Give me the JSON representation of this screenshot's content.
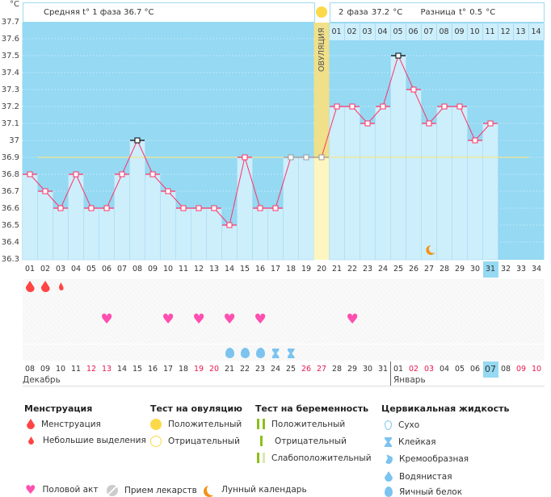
{
  "units": "°C",
  "header": {
    "phase1": "Средняя t° 1 фаза  36.7 °C",
    "phase2": "2 фаза  37.2 °C",
    "difference": "Разница t°  0.5 °C",
    "ovulation_label": "ОВУЛЯЦИЯ"
  },
  "phase2_days": [
    "01",
    "02",
    "03",
    "04",
    "05",
    "06",
    "07",
    "08",
    "09",
    "10",
    "11",
    "12",
    "13",
    "14"
  ],
  "chart_data": {
    "type": "bar",
    "ylim": [
      36.3,
      37.7
    ],
    "yticks": [
      "37.7",
      "37.6",
      "37.5",
      "37.4",
      "37.3",
      "37.2",
      "37.1",
      "37",
      "36.9",
      "36.8",
      "36.7",
      "36.6",
      "36.5",
      "36.4",
      "36.3"
    ],
    "categories": [
      "01",
      "02",
      "03",
      "04",
      "05",
      "06",
      "07",
      "08",
      "09",
      "10",
      "11",
      "12",
      "13",
      "14",
      "15",
      "16",
      "17",
      "18",
      "19",
      "20",
      "21",
      "22",
      "23",
      "24",
      "25",
      "26",
      "27",
      "28",
      "29",
      "30",
      "31",
      "32",
      "33",
      "34"
    ],
    "values": [
      36.8,
      36.7,
      36.6,
      36.8,
      36.6,
      36.6,
      36.8,
      37.0,
      36.8,
      36.7,
      36.6,
      36.6,
      36.6,
      36.5,
      36.9,
      36.6,
      36.6,
      36.9,
      36.9,
      36.9,
      37.2,
      37.2,
      37.1,
      37.2,
      37.5,
      37.3,
      37.1,
      37.2,
      37.2,
      37.0,
      37.1,
      null,
      null,
      null
    ],
    "coverline": 36.9,
    "ovulation_day": 20,
    "current_day": 31,
    "colors": {
      "line": "#ff3366",
      "bar": "#cdeefb",
      "background": "#95d9f3",
      "ovulation": "#fdf6c0",
      "coverline": "#f5e68a"
    }
  },
  "icons": {
    "menstruation": {
      "01": "menstruation",
      "02": "menstruation",
      "03": "spotting"
    },
    "intercourse": [
      "06",
      "10",
      "12",
      "14",
      "16",
      "22"
    ],
    "cervical": {
      "14": "egg-white",
      "15": "egg-white",
      "16": "egg-white",
      "17": "sticky",
      "18": "sticky"
    },
    "moon_day": "27"
  },
  "dates": [
    "08",
    "09",
    "10",
    "11",
    "12",
    "13",
    "14",
    "15",
    "16",
    "17",
    "18",
    "19",
    "20",
    "21",
    "22",
    "23",
    "24",
    "25",
    "26",
    "27",
    "28",
    "29",
    "30",
    "31",
    "01",
    "02",
    "03",
    "04",
    "05",
    "06",
    "07",
    "08",
    "09",
    "10"
  ],
  "weekend_dates_index": [
    4,
    5,
    11,
    12,
    18,
    19,
    25,
    26,
    32,
    33
  ],
  "months": {
    "first": "Декабрь",
    "second": "Январь"
  },
  "legend": {
    "menstruation": {
      "title": "Менструация",
      "items": [
        "Менструация",
        "Небольшие выделения"
      ]
    },
    "ovulation_test": {
      "title": "Тест на овуляцию",
      "items": [
        "Положительный",
        "Отрицательный"
      ]
    },
    "pregnancy_test": {
      "title": "Тест на беременность",
      "items": [
        "Положительный",
        "Отрицательный",
        "Слабоположительный"
      ]
    },
    "cervical": {
      "title": "Цервикальная жидкость",
      "items": [
        "Сухо",
        "Клейкая",
        "Кремообразная",
        "Водянистая",
        "Яичный белок"
      ]
    },
    "bottom": [
      "Половой акт",
      "Прием лекарств",
      "Лунный календарь"
    ]
  }
}
